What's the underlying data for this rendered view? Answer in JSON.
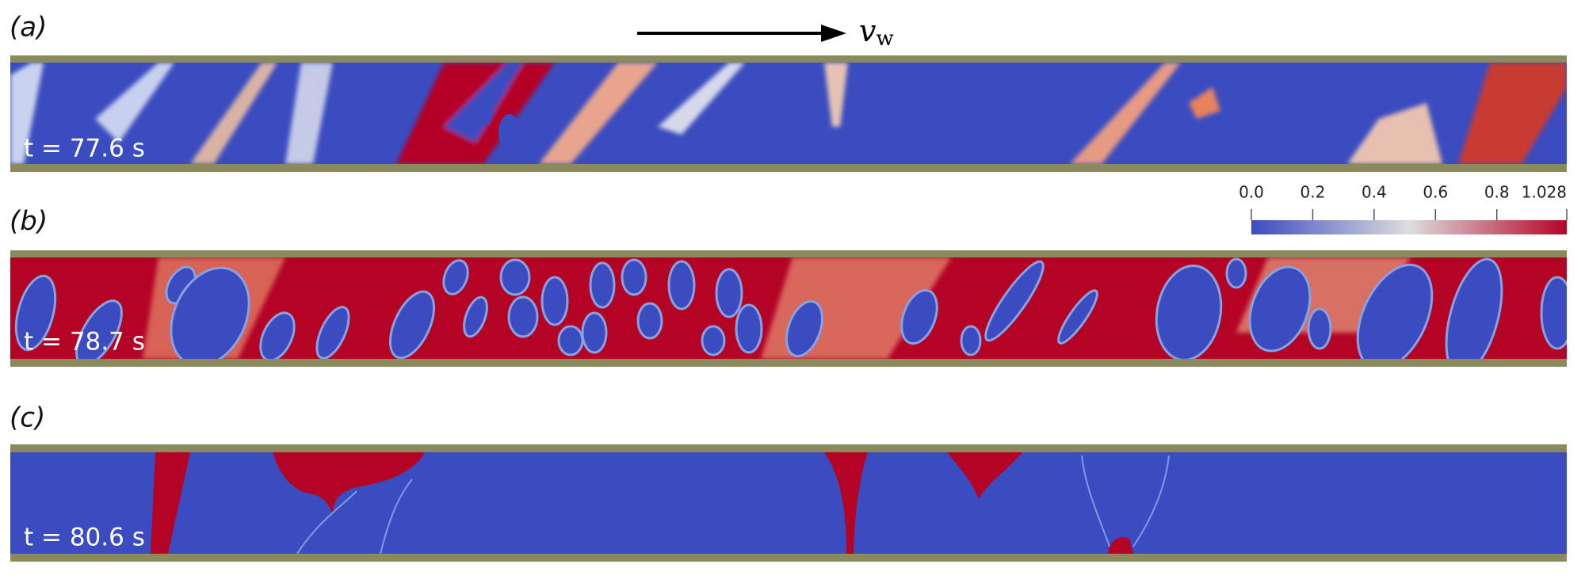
{
  "panels": [
    {
      "label": "(a)",
      "time": "t = 77.6 s"
    },
    {
      "label": "(b)",
      "time": "t = 78.7 s"
    },
    {
      "label": "(c)",
      "time": "t = 80.6 s"
    }
  ],
  "arrow_label": {
    "symbol": "v",
    "subscript": "w"
  },
  "colorbar": {
    "lim": [
      0,
      1.028
    ],
    "ticks": [
      {
        "value": 0,
        "label": "0.0"
      },
      0.2,
      0.4,
      0.6,
      0.8,
      1.028
    ]
  }
}
